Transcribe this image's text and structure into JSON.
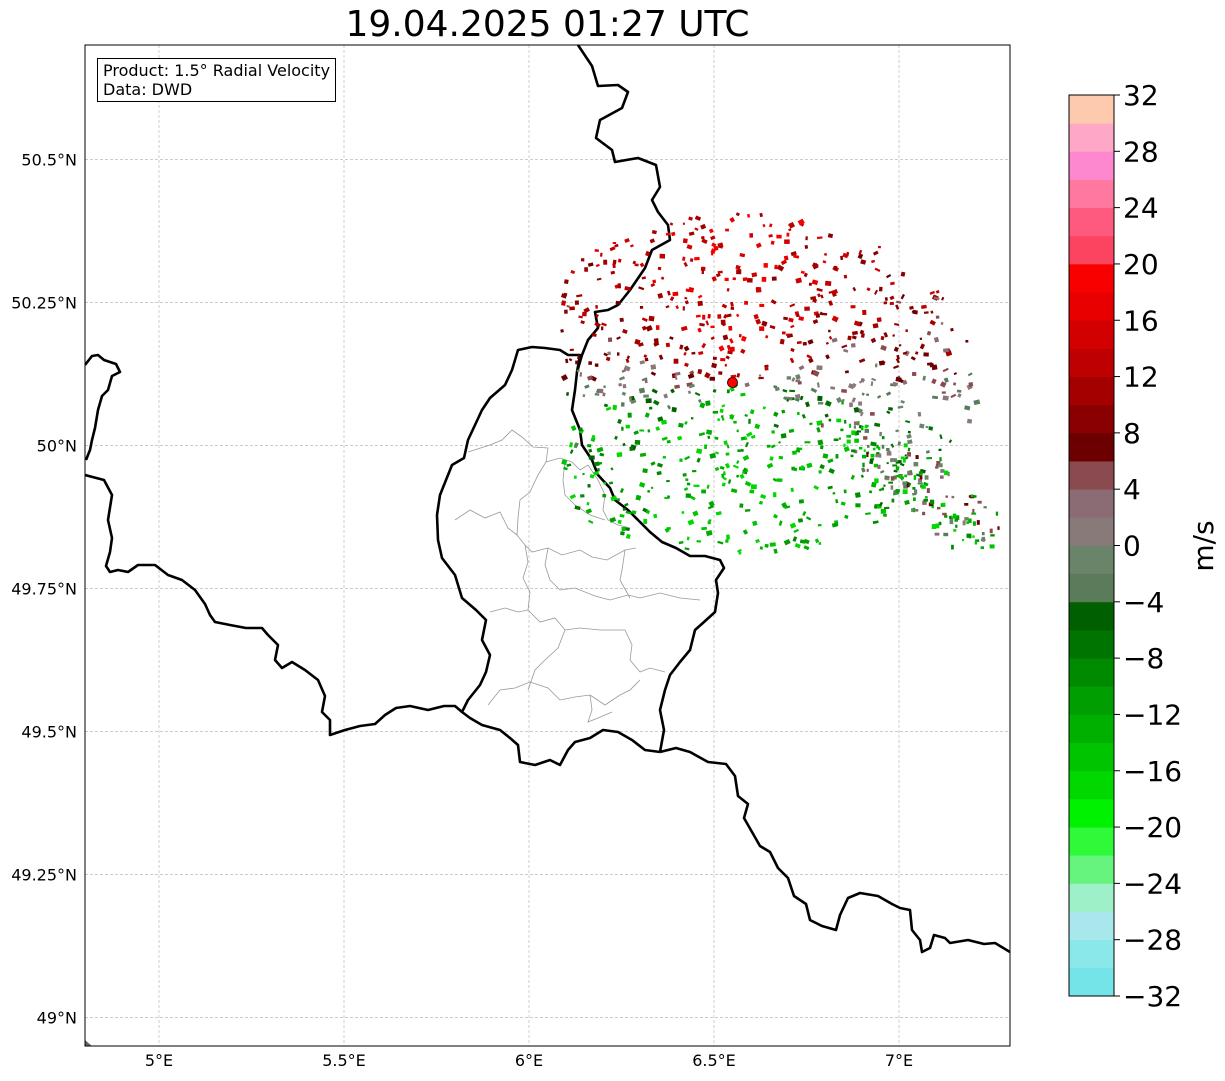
{
  "title": "19.04.2025 01:27 UTC",
  "info": {
    "product": "Product: 1.5° Radial Velocity",
    "source": "Data: DWD"
  },
  "map": {
    "lon_range": [
      4.8,
      7.3
    ],
    "lat_range": [
      48.95,
      50.7
    ],
    "lon_ticks": [
      {
        "value": 5.0,
        "label": "5°E"
      },
      {
        "value": 5.5,
        "label": "5.5°E"
      },
      {
        "value": 6.0,
        "label": "6°E"
      },
      {
        "value": 6.5,
        "label": "6.5°E"
      },
      {
        "value": 7.0,
        "label": "7°E"
      }
    ],
    "lat_ticks": [
      {
        "value": 49.0,
        "label": "49°N"
      },
      {
        "value": 49.25,
        "label": "49.25°N"
      },
      {
        "value": 49.5,
        "label": "49.5°N"
      },
      {
        "value": 49.75,
        "label": "49.75°N"
      },
      {
        "value": 50.0,
        "label": "50°N"
      },
      {
        "value": 50.25,
        "label": "50.25°N"
      },
      {
        "value": 50.5,
        "label": "50.5°N"
      }
    ],
    "radar_site": {
      "lon": 6.55,
      "lat": 50.11
    }
  },
  "colorbar": {
    "label": "m/s",
    "min": -32,
    "max": 32,
    "tick_labels": [
      "−32",
      "−28",
      "−24",
      "−20",
      "−16",
      "−12",
      "−8",
      "−4",
      "0",
      "4",
      "8",
      "12",
      "16",
      "20",
      "24",
      "28",
      "32"
    ],
    "colors": [
      "#74e4e8",
      "#8ae8ea",
      "#a8e8ec",
      "#9ef0c8",
      "#66f47e",
      "#2efa3a",
      "#00f200",
      "#00d800",
      "#00c400",
      "#00b000",
      "#009e00",
      "#008a00",
      "#007400",
      "#006000",
      "#5a7c5a",
      "#6a846a",
      "#887a78",
      "#8c6c74",
      "#8a4a50",
      "#6c0000",
      "#8a0000",
      "#a40000",
      "#be0000",
      "#d20000",
      "#e80000",
      "#f80000",
      "#fc4460",
      "#fe5a80",
      "#fe78a0",
      "#fe88d0",
      "#fea8c8",
      "#fecaae"
    ]
  },
  "colors": {
    "border": "#000000",
    "internal_border": "#999999",
    "grid": "#bbbbbb",
    "radar_marker": "#ff0000"
  }
}
